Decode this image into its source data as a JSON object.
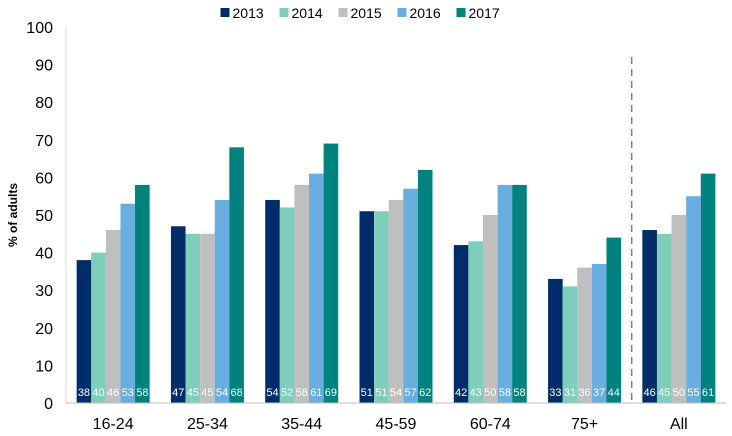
{
  "chart_data": {
    "type": "bar",
    "categories": [
      "16-24",
      "25-34",
      "35-44",
      "45-59",
      "60-74",
      "75+",
      "All"
    ],
    "series": [
      {
        "name": "2013",
        "color": "#002d69",
        "values": [
          38,
          47,
          54,
          51,
          42,
          33,
          46
        ]
      },
      {
        "name": "2014",
        "color": "#7fcdbb",
        "values": [
          40,
          45,
          52,
          51,
          43,
          31,
          45
        ]
      },
      {
        "name": "2015",
        "color": "#bfbfbf",
        "values": [
          46,
          45,
          58,
          54,
          50,
          36,
          50
        ]
      },
      {
        "name": "2016",
        "color": "#6aaedf",
        "values": [
          53,
          54,
          61,
          57,
          58,
          37,
          55
        ]
      },
      {
        "name": "2017",
        "color": "#00827f",
        "values": [
          58,
          68,
          69,
          62,
          58,
          44,
          61
        ]
      }
    ],
    "ylabel": "% of adults",
    "xlabel": "",
    "ylim": [
      0,
      100
    ],
    "yticks": [
      0,
      10,
      20,
      30,
      40,
      50,
      60,
      70,
      80,
      90,
      100
    ],
    "legend_position": "top",
    "separator_before_category": "All",
    "grid": false
  }
}
